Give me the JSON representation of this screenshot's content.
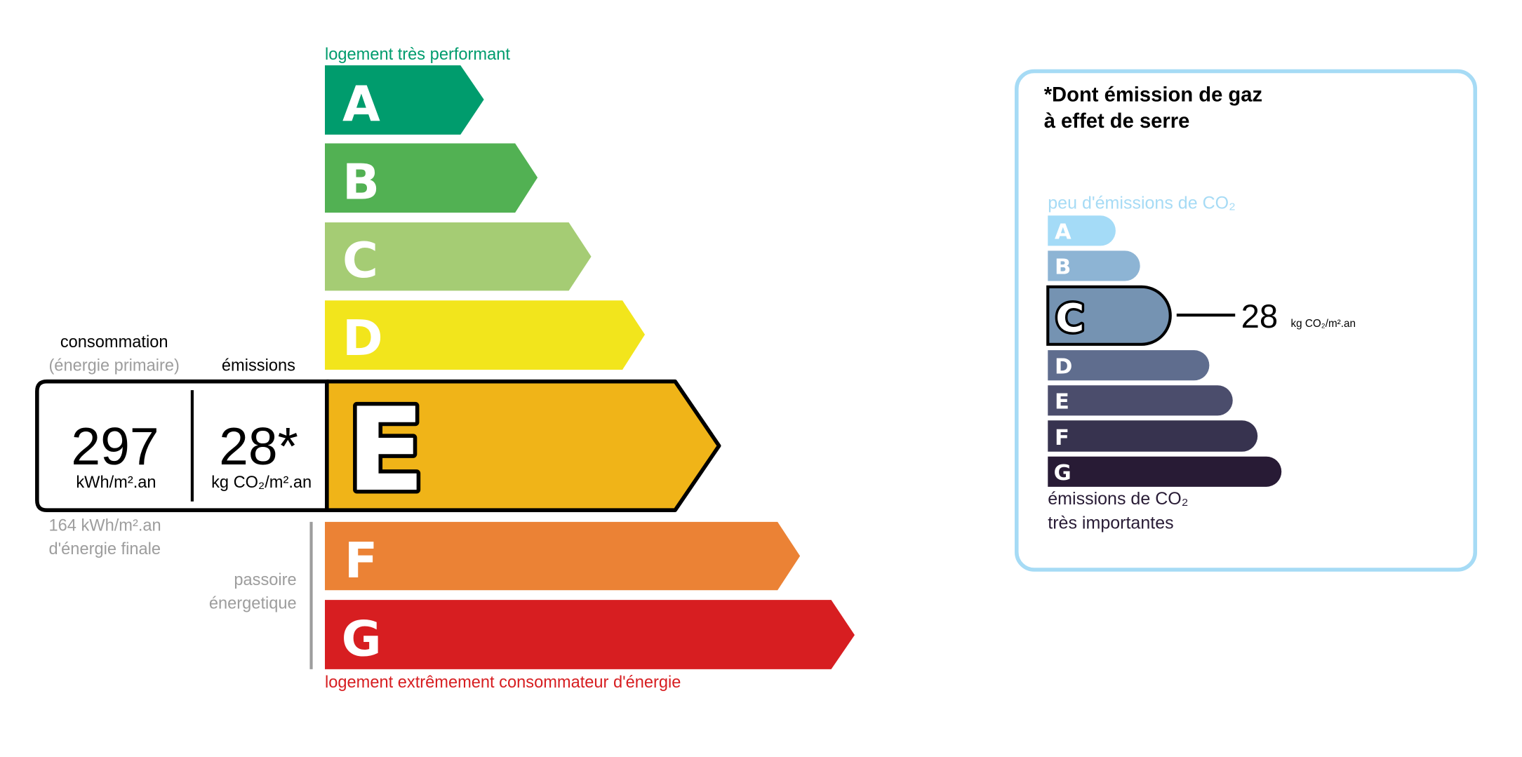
{
  "energy_label": {
    "top_caption": "logement très performant",
    "bottom_caption": "logement extrêmement consommateur d'énergie",
    "classes": [
      {
        "letter": "A",
        "color": "#009c6d"
      },
      {
        "letter": "B",
        "color": "#52b153"
      },
      {
        "letter": "C",
        "color": "#a5cc74"
      },
      {
        "letter": "D",
        "color": "#f2e51c"
      },
      {
        "letter": "E",
        "color": "#f0b418"
      },
      {
        "letter": "F",
        "color": "#eb8235"
      },
      {
        "letter": "G",
        "color": "#d71e21"
      }
    ],
    "current_class": "E",
    "consumption_label": "consommation",
    "consumption_sublabel": "(énergie primaire)",
    "emissions_label": "émissions",
    "consumption_value": "297",
    "consumption_unit": "kWh/m².an",
    "emissions_value": "28*",
    "emissions_unit": "kg CO₂/m².an",
    "final_energy_value": "164 kWh/m².an",
    "final_energy_label": "d'énergie finale",
    "passoire_line1": "passoire",
    "passoire_line2": "énergetique"
  },
  "ges_panel": {
    "title_line1": "*Dont émission de gaz",
    "title_line2": "à effet de serre",
    "top_caption": "peu d'émissions de CO₂",
    "bottom_caption_line1": "émissions de CO₂",
    "bottom_caption_line2": "très importantes",
    "classes": [
      {
        "letter": "A",
        "color": "#a4dbf7"
      },
      {
        "letter": "B",
        "color": "#8db4d4"
      },
      {
        "letter": "C",
        "color": "#7593b2"
      },
      {
        "letter": "D",
        "color": "#5f6d8e"
      },
      {
        "letter": "E",
        "color": "#4b4d6c"
      },
      {
        "letter": "F",
        "color": "#37334f"
      },
      {
        "letter": "G",
        "color": "#281b35"
      }
    ],
    "current_class": "C",
    "value": "28",
    "unit": "kg CO₂/m².an",
    "border_color": "#a6dbf5"
  }
}
